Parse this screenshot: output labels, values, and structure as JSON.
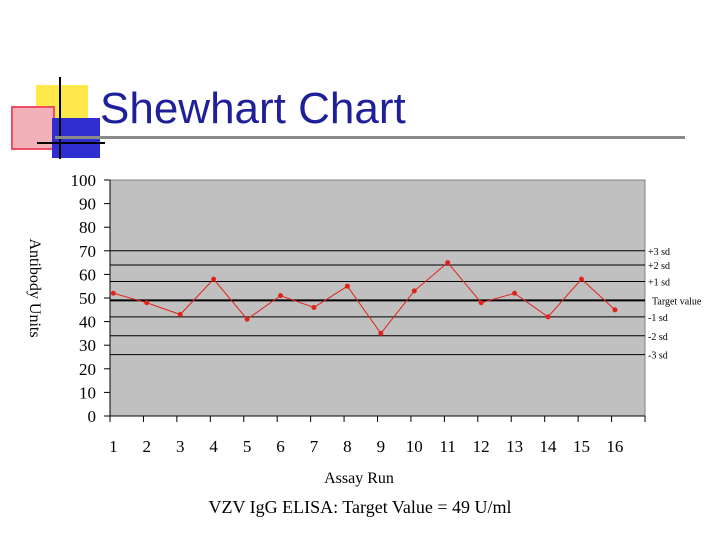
{
  "slide": {
    "title": "Shewhart Chart",
    "caption": "VZV IgG ELISA: Target Value = 49 U/ml"
  },
  "chart_data": {
    "type": "line",
    "xlabel": "Assay Run",
    "ylabel": "Antibody Units",
    "x": [
      1,
      2,
      3,
      4,
      5,
      6,
      7,
      8,
      9,
      10,
      11,
      12,
      13,
      14,
      15,
      16
    ],
    "values": [
      52,
      48,
      43,
      58,
      41,
      51,
      46,
      55,
      35,
      53,
      65,
      48,
      52,
      42,
      58,
      45
    ],
    "ylim": [
      0,
      100
    ],
    "yticks": [
      0,
      10,
      20,
      30,
      40,
      50,
      60,
      70,
      80,
      90,
      100
    ],
    "grid": false,
    "plot_background": "#c0c0c0",
    "line_color": "#e0241b",
    "reference_lines": [
      {
        "label": "+3 sd",
        "value": 70
      },
      {
        "label": "+2 sd",
        "value": 64
      },
      {
        "label": "+1 sd",
        "value": 57
      },
      {
        "label": "Target value",
        "value": 49
      },
      {
        "label": "-1 sd",
        "value": 42
      },
      {
        "label": "-2 sd",
        "value": 34
      },
      {
        "label": "-3 sd",
        "value": 26
      }
    ]
  }
}
